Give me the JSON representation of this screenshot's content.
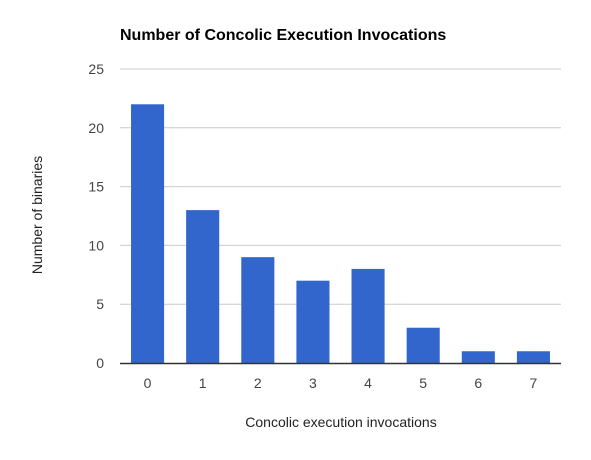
{
  "chart_data": {
    "type": "bar",
    "title": "Number of Concolic Execution Invocations",
    "xlabel": "Concolic execution invocations",
    "ylabel": "Number of binaries",
    "categories": [
      "0",
      "1",
      "2",
      "3",
      "4",
      "5",
      "6",
      "7"
    ],
    "values": [
      22,
      13,
      9,
      7,
      8,
      3,
      1,
      1
    ],
    "ylim": [
      0,
      25
    ],
    "yticks": [
      "0",
      "5",
      "10",
      "15",
      "20",
      "25"
    ],
    "grid": true,
    "legend": "none",
    "colors": {
      "bar": "#3366cc",
      "grid": "#cccccc",
      "baseline": "#333333"
    }
  }
}
